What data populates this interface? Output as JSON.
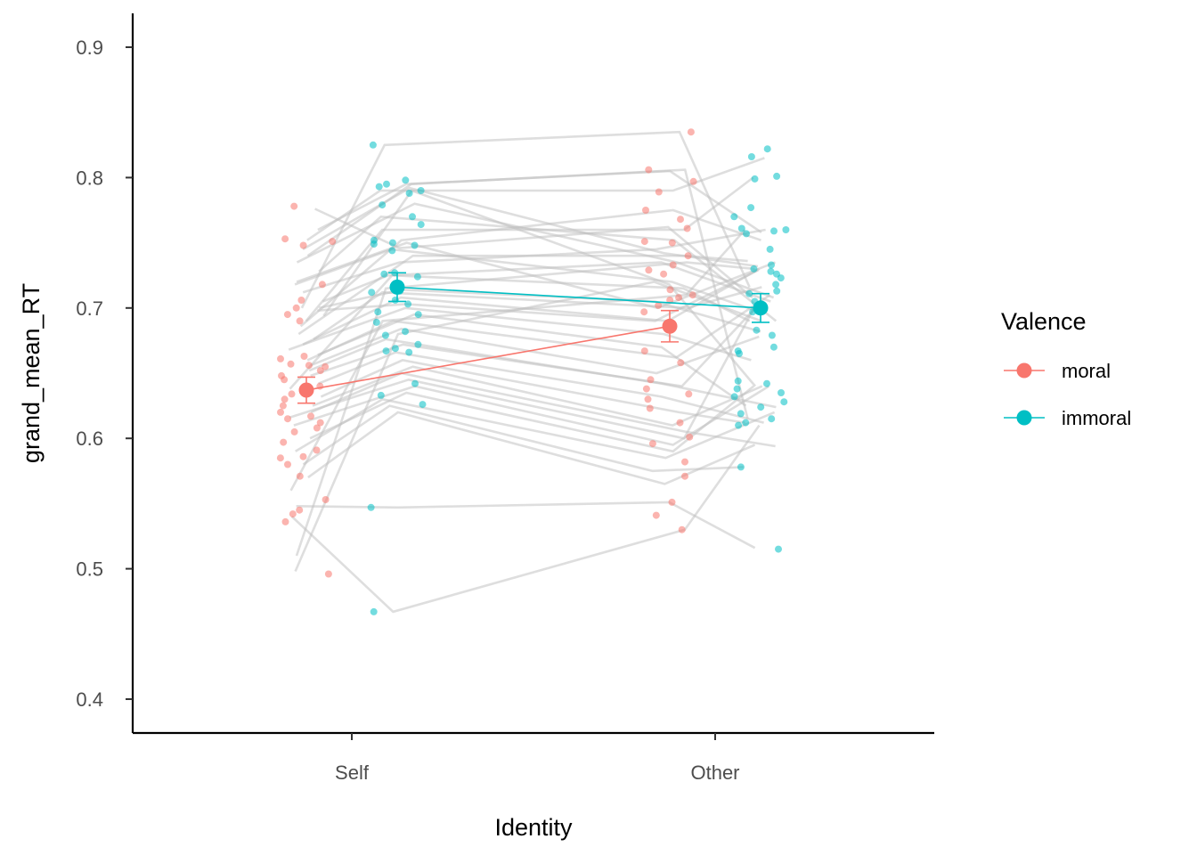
{
  "chart_data": {
    "type": "line",
    "title": "",
    "xlabel": "Identity",
    "ylabel": "grand_mean_RT",
    "categories": [
      "Self",
      "Other"
    ],
    "ylim": [
      0.375,
      0.925
    ],
    "yticks": [
      0.4,
      0.5,
      0.6,
      0.7,
      0.8,
      0.9
    ],
    "ytick_labels": [
      "0.4",
      "0.5",
      "0.6",
      "0.7",
      "0.8",
      "0.9"
    ],
    "grid": false,
    "legend": {
      "title": "Valence",
      "position": "right",
      "entries": [
        "moral",
        "immoral"
      ]
    },
    "colors": {
      "moral": "#f8766d",
      "immoral": "#00bfc4",
      "subject_lines": "#bdbdbd"
    },
    "series": [
      {
        "name": "moral",
        "means": [
          0.637,
          0.686
        ],
        "se": [
          0.01,
          0.012
        ],
        "points": {
          "Self": [
            0.778,
            0.751,
            0.753,
            0.748,
            0.718,
            0.706,
            0.7,
            0.695,
            0.69,
            0.663,
            0.661,
            0.657,
            0.656,
            0.655,
            0.652,
            0.648,
            0.645,
            0.64,
            0.638,
            0.634,
            0.63,
            0.625,
            0.62,
            0.617,
            0.615,
            0.612,
            0.608,
            0.605,
            0.597,
            0.591,
            0.586,
            0.585,
            0.58,
            0.571,
            0.553,
            0.545,
            0.542,
            0.536,
            0.496
          ],
          "Other": [
            0.835,
            0.806,
            0.797,
            0.789,
            0.775,
            0.768,
            0.761,
            0.751,
            0.75,
            0.74,
            0.733,
            0.729,
            0.726,
            0.714,
            0.71,
            0.708,
            0.706,
            0.702,
            0.697,
            0.667,
            0.658,
            0.645,
            0.638,
            0.634,
            0.63,
            0.623,
            0.612,
            0.601,
            0.596,
            0.582,
            0.571,
            0.551,
            0.541,
            0.53
          ]
        }
      },
      {
        "name": "immoral",
        "means": [
          0.716,
          0.7
        ],
        "se": [
          0.011,
          0.011
        ],
        "points": {
          "Self": [
            0.825,
            0.798,
            0.795,
            0.793,
            0.79,
            0.788,
            0.779,
            0.77,
            0.764,
            0.752,
            0.75,
            0.749,
            0.748,
            0.744,
            0.727,
            0.726,
            0.724,
            0.713,
            0.712,
            0.706,
            0.703,
            0.697,
            0.695,
            0.689,
            0.682,
            0.679,
            0.672,
            0.669,
            0.667,
            0.666,
            0.642,
            0.633,
            0.626,
            0.547,
            0.467
          ],
          "Other": [
            0.822,
            0.816,
            0.801,
            0.799,
            0.777,
            0.77,
            0.761,
            0.76,
            0.759,
            0.757,
            0.745,
            0.733,
            0.73,
            0.728,
            0.726,
            0.723,
            0.718,
            0.713,
            0.711,
            0.705,
            0.697,
            0.683,
            0.679,
            0.67,
            0.667,
            0.665,
            0.644,
            0.642,
            0.638,
            0.635,
            0.632,
            0.628,
            0.624,
            0.619,
            0.615,
            0.612,
            0.61,
            0.578,
            0.515
          ]
        }
      }
    ],
    "subject_lines": [
      [
        0.776,
        0.746,
        0.762,
        0.708
      ],
      [
        0.76,
        0.795,
        0.805,
        0.758
      ],
      [
        0.752,
        0.79,
        0.79,
        0.815
      ],
      [
        0.745,
        0.792,
        0.742,
        0.732
      ],
      [
        0.735,
        0.78,
        0.735,
        0.708
      ],
      [
        0.728,
        0.77,
        0.752,
        0.69
      ],
      [
        0.72,
        0.75,
        0.7,
        0.735
      ],
      [
        0.718,
        0.745,
        0.72,
        0.698
      ],
      [
        0.712,
        0.735,
        0.745,
        0.76
      ],
      [
        0.705,
        0.725,
        0.735,
        0.705
      ],
      [
        0.7,
        0.714,
        0.705,
        0.682
      ],
      [
        0.698,
        0.703,
        0.69,
        0.729
      ],
      [
        0.694,
        0.79,
        0.718,
        0.64
      ],
      [
        0.69,
        0.76,
        0.76,
        0.8
      ],
      [
        0.686,
        0.752,
        0.775,
        0.752
      ],
      [
        0.68,
        0.74,
        0.74,
        0.736
      ],
      [
        0.676,
        0.712,
        0.7,
        0.716
      ],
      [
        0.672,
        0.708,
        0.69,
        0.73
      ],
      [
        0.668,
        0.7,
        0.68,
        0.66
      ],
      [
        0.664,
        0.695,
        0.67,
        0.625
      ],
      [
        0.66,
        0.69,
        0.662,
        0.71
      ],
      [
        0.656,
        0.684,
        0.65,
        0.678
      ],
      [
        0.652,
        0.676,
        0.642,
        0.624
      ],
      [
        0.648,
        0.672,
        0.64,
        0.7
      ],
      [
        0.642,
        0.666,
        0.632,
        0.612
      ],
      [
        0.638,
        0.725,
        0.715,
        0.69
      ],
      [
        0.632,
        0.66,
        0.62,
        0.612
      ],
      [
        0.625,
        0.655,
        0.61,
        0.64
      ],
      [
        0.62,
        0.65,
        0.605,
        0.594
      ],
      [
        0.616,
        0.645,
        0.6,
        0.7
      ],
      [
        0.61,
        0.64,
        0.595,
        0.64
      ],
      [
        0.6,
        0.635,
        0.59,
        0.64
      ],
      [
        0.59,
        0.63,
        0.585,
        0.62
      ],
      [
        0.58,
        0.625,
        0.575,
        0.578
      ],
      [
        0.57,
        0.62,
        0.565,
        0.595
      ],
      [
        0.56,
        0.69,
        0.71,
        0.76
      ],
      [
        0.548,
        0.547,
        0.551,
        0.516
      ],
      [
        0.54,
        0.467,
        0.53,
        0.61
      ],
      [
        0.51,
        0.715,
        0.735,
        0.73
      ],
      [
        0.498,
        0.68,
        0.72,
        0.69
      ],
      [
        0.7,
        0.825,
        0.835,
        0.716
      ],
      [
        0.74,
        0.795,
        0.806,
        0.615
      ]
    ]
  }
}
